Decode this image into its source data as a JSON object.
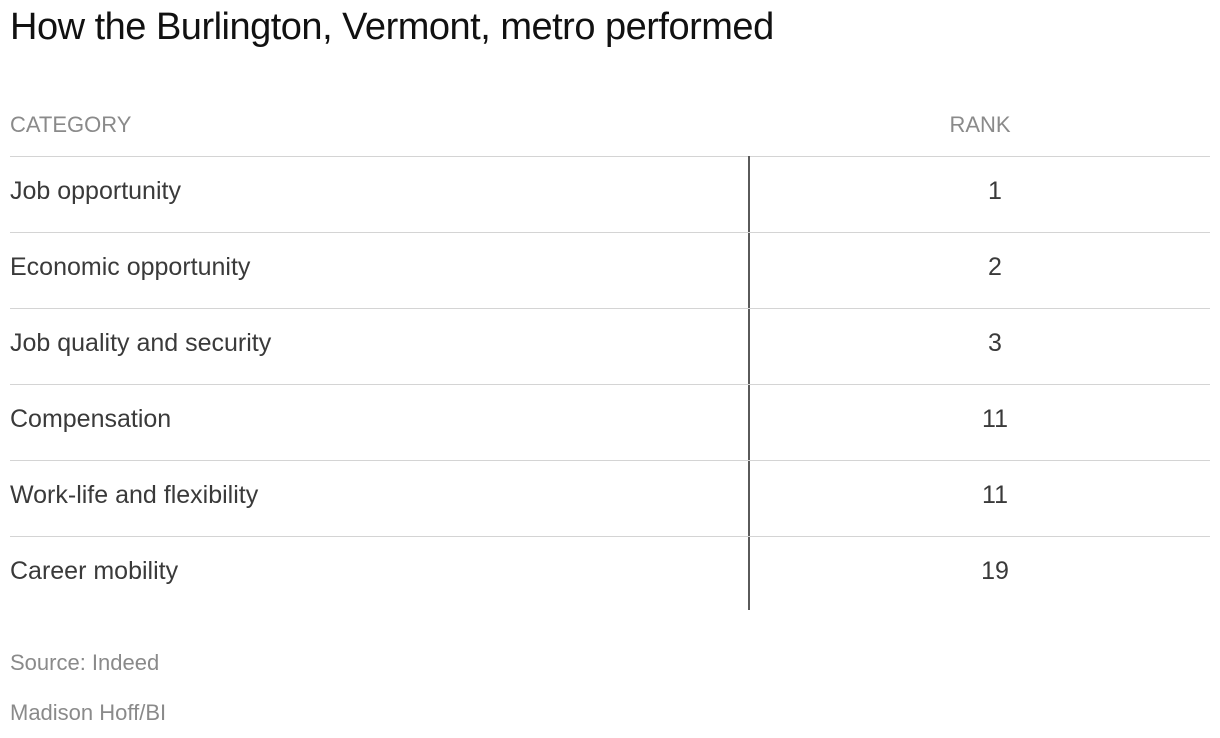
{
  "chart_data": {
    "type": "table",
    "title": "How the Burlington, Vermont, metro performed",
    "columns": [
      "CATEGORY",
      "RANK"
    ],
    "rows": [
      {
        "category": "Job opportunity",
        "rank": "1"
      },
      {
        "category": "Economic opportunity",
        "rank": "2"
      },
      {
        "category": "Job quality and security",
        "rank": "3"
      },
      {
        "category": "Compensation",
        "rank": "11"
      },
      {
        "category": "Work-life and flexibility",
        "rank": "11"
      },
      {
        "category": "Career mobility",
        "rank": "19"
      }
    ],
    "source": "Source: Indeed",
    "credit": "Madison Hoff/BI"
  }
}
